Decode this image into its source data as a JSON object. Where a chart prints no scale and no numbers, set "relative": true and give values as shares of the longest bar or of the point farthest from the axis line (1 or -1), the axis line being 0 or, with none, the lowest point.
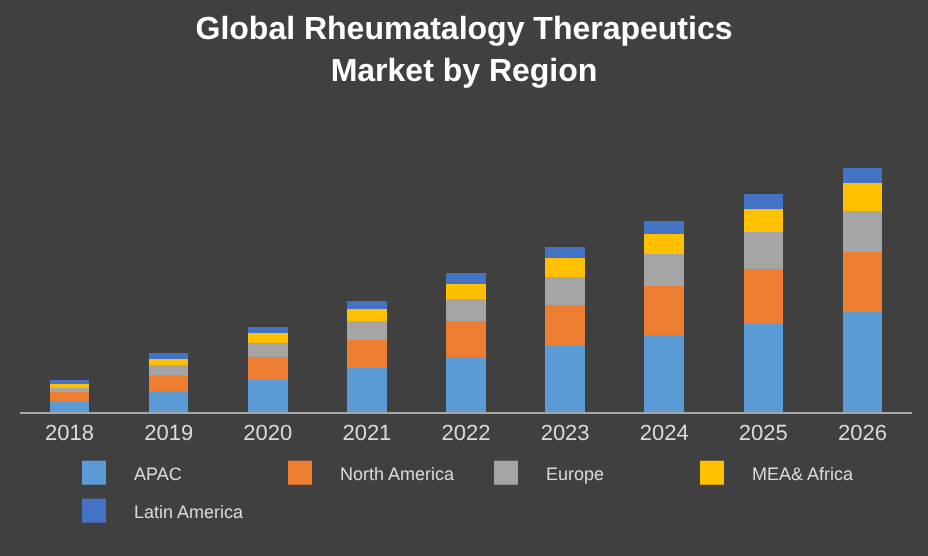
{
  "chart_data": {
    "type": "bar",
    "title": "Global Rheumatalogy Therapeutics\nMarket by Region",
    "relative": true,
    "stacked": true,
    "legend": "bottom",
    "grid": false,
    "categories": [
      "2018",
      "2019",
      "2020",
      "2021",
      "2022",
      "2023",
      "2024",
      "2025",
      "2026"
    ],
    "series": [
      {
        "name": "APAC",
        "color": "#5b9bd5",
        "values": [
          0.041,
          0.087,
          0.133,
          0.179,
          0.225,
          0.271,
          0.317,
          0.363,
          0.409
        ]
      },
      {
        "name": "North America",
        "color": "#ed7d31",
        "values": [
          0.041,
          0.064,
          0.092,
          0.115,
          0.146,
          0.169,
          0.199,
          0.223,
          0.246
        ]
      },
      {
        "name": "Europe",
        "color": "#a5a5a5",
        "values": [
          0.02,
          0.043,
          0.056,
          0.079,
          0.092,
          0.115,
          0.13,
          0.153,
          0.169
        ]
      },
      {
        "name": "MEA& Africa",
        "color": "#ffc000",
        "values": [
          0.015,
          0.023,
          0.043,
          0.051,
          0.061,
          0.077,
          0.084,
          0.092,
          0.115
        ]
      },
      {
        "name": "Latin America",
        "color": "#4472c4",
        "values": [
          0.015,
          0.023,
          0.023,
          0.031,
          0.046,
          0.046,
          0.054,
          0.061,
          0.061
        ]
      }
    ]
  }
}
